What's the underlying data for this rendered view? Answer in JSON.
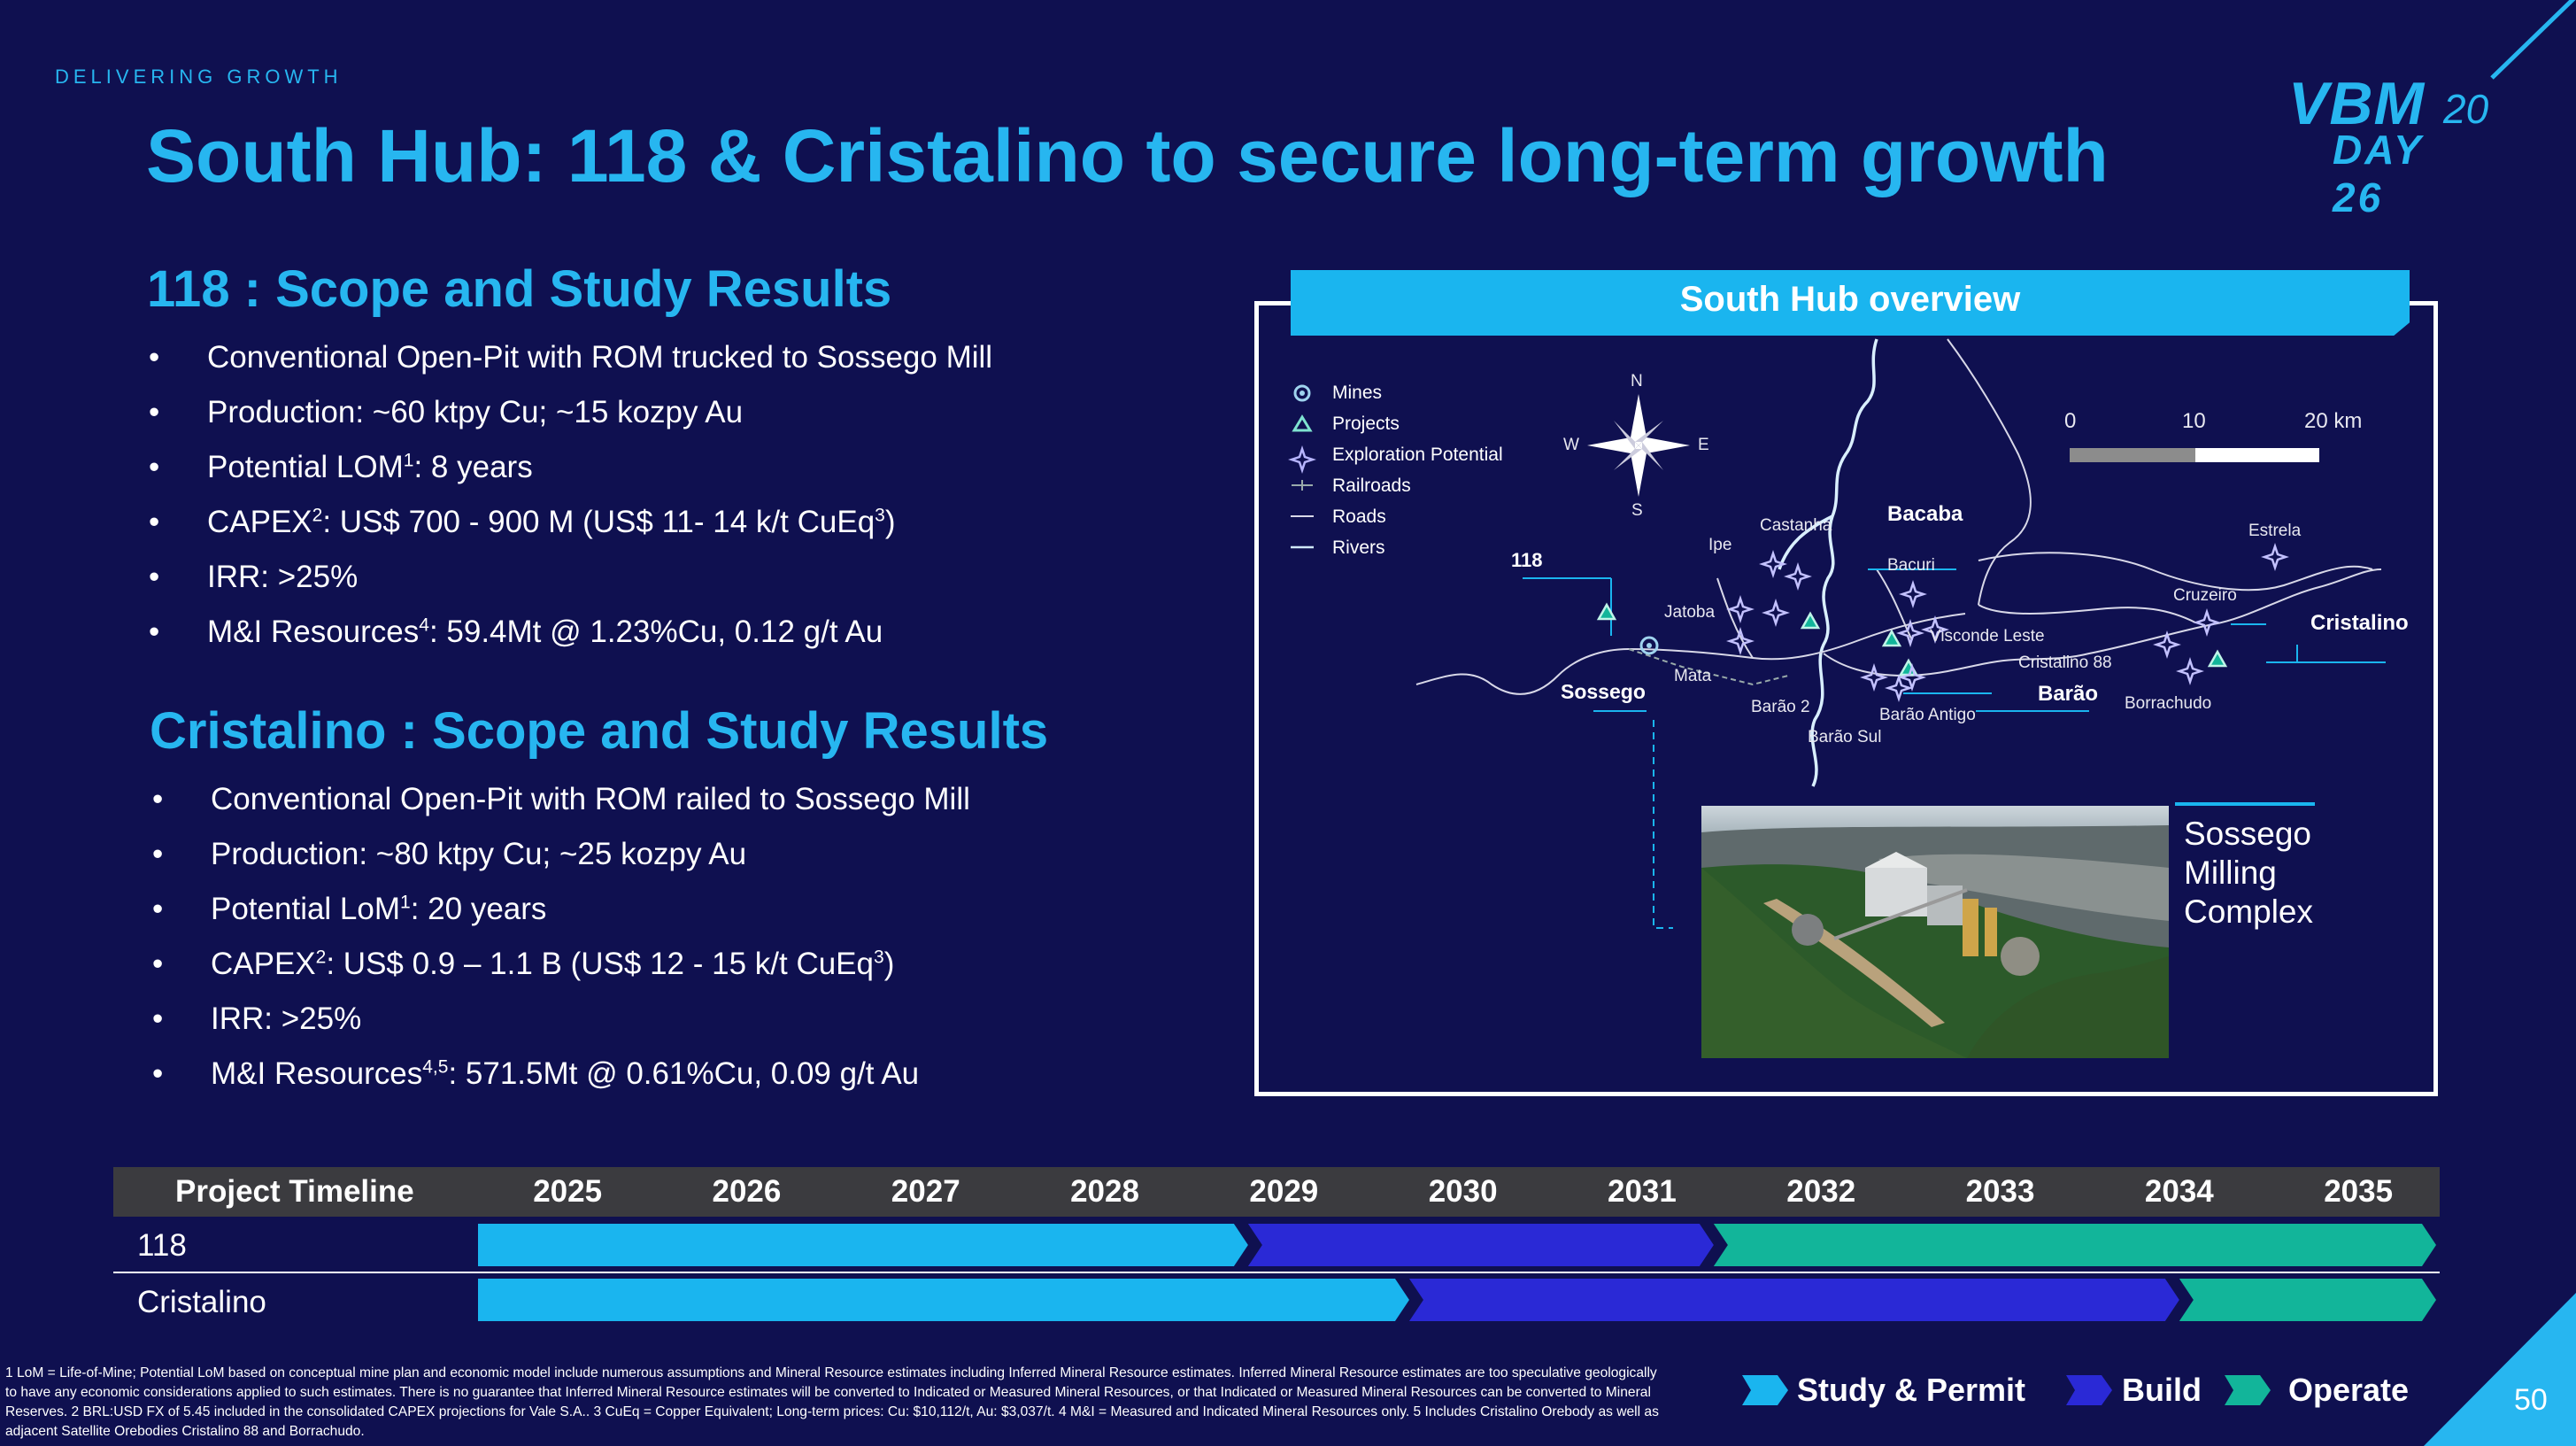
{
  "header": {
    "kicker": "DELIVERING GROWTH",
    "title": "South Hub: 118 & Cristalino to secure long-term growth",
    "logo_vbm": "VBM",
    "logo_20": "20",
    "logo_day": "DAY 26"
  },
  "section_118": {
    "heading": "118 : Scope and Study Results",
    "bullet": "•",
    "b1": "Conventional Open-Pit with ROM trucked to Sossego Mill",
    "b2": "Production: ~60 ktpy Cu; ~15 kozpy Au",
    "b3_pre": "Potential LOM",
    "b3_sup": "1",
    "b3_post": ": 8 years",
    "b4_pre": "CAPEX",
    "b4_sup": "2",
    "b4_mid": ": US$ 700 - 900 M (US$ 11- 14 k/t CuEq",
    "b4_sup2": "3",
    "b4_post": ")",
    "b5": "IRR: >25%",
    "b6_pre": "M&I Resources",
    "b6_sup": "4",
    "b6_post": ": 59.4Mt @ 1.23%Cu, 0.12 g/t Au"
  },
  "section_cristalino": {
    "heading": "Cristalino : Scope and Study Results",
    "bullet": "•",
    "b1": "Conventional Open-Pit with ROM railed to Sossego Mill",
    "b2": "Production: ~80 ktpy Cu; ~25 kozpy Au",
    "b3_pre": "Potential LoM",
    "b3_sup": "1",
    "b3_post": ": 20 years",
    "b4_pre": "CAPEX",
    "b4_sup": "2",
    "b4_mid": ": US$ 0.9 – 1.1 B (US$ 12 - 15 k/t CuEq",
    "b4_sup2": "3",
    "b4_post": ")",
    "b5": "IRR: >25%",
    "b6_pre": "M&I Resources",
    "b6_sup": "4,5",
    "b6_post": ": 571.5Mt @ 0.61%Cu, 0.09 g/t Au"
  },
  "overview": {
    "title": "South Hub overview",
    "legend": {
      "mines": "Mines",
      "projects": "Projects",
      "exploration": "Exploration Potential",
      "railroads": "Railroads",
      "roads": "Roads",
      "rivers": "Rivers"
    },
    "compass": {
      "n": "N",
      "s": "S",
      "e": "E",
      "w": "W"
    },
    "scale": {
      "s0": "0",
      "s10": "10",
      "s20": "20 km"
    },
    "places": {
      "p118": "118",
      "sossego": "Sossego",
      "jatoba": "Jatoba",
      "mata": "Mata",
      "ipe": "Ipe",
      "castanha": "Castanha",
      "bacaba": "Bacaba",
      "bacuri": "Bacuri",
      "visconde": "Visconde Leste",
      "cristalino88": "Cristalino 88",
      "barao": "Barão",
      "barao2": "Barão 2",
      "barao_antigo": "Barão Antigo",
      "barao_sul": "Barão Sul",
      "borrachudo": "Borrachudo",
      "cruzeiro": "Cruzeiro",
      "estrela": "Estrela",
      "cristalino": "Cristalino"
    },
    "photo_caption_1": "Sossego",
    "photo_caption_2": "Milling",
    "photo_caption_3": "Complex"
  },
  "timeline": {
    "header": "Project Timeline",
    "years": [
      "2025",
      "2026",
      "2027",
      "2028",
      "2029",
      "2030",
      "2031",
      "2032",
      "2033",
      "2034",
      "2035"
    ],
    "rows": [
      {
        "name": "118",
        "study_end": 2029.3,
        "build_end": 2031.9
      },
      {
        "name": "Cristalino",
        "study_end": 2030.2,
        "build_end": 2034.5
      }
    ],
    "key": {
      "study": "Study & Permit",
      "build": "Build",
      "operate": "Operate"
    },
    "colors": {
      "study": "#1ab5ef",
      "build": "#2a29d6",
      "operate": "#12b59a"
    }
  },
  "footnote": "1 LoM = Life-of-Mine; Potential LoM based on conceptual mine plan and economic model include numerous assumptions and Mineral Resource estimates including Inferred Mineral Resource estimates. Inferred Mineral Resource estimates are too speculative geologically to have any economic considerations applied to such estimates. There is no guarantee that Inferred Mineral Resource estimates will be converted to Indicated or Measured Mineral Resources, or that Indicated or Measured Mineral Resources can be converted to Mineral Reserves. 2 BRL:USD FX of 5.45 included in the consolidated CAPEX projections for Vale S.A.. 3 CuEq = Copper Equivalent; Long-term prices: Cu: $10,112/t, Au: $3,037/t. 4 M&I = Measured and Indicated Mineral Resources only. 5 Includes Cristalino Orebody as well as adjacent Satellite Orebodies Cristalino 88 and Borrachudo.",
  "page_number": "50"
}
